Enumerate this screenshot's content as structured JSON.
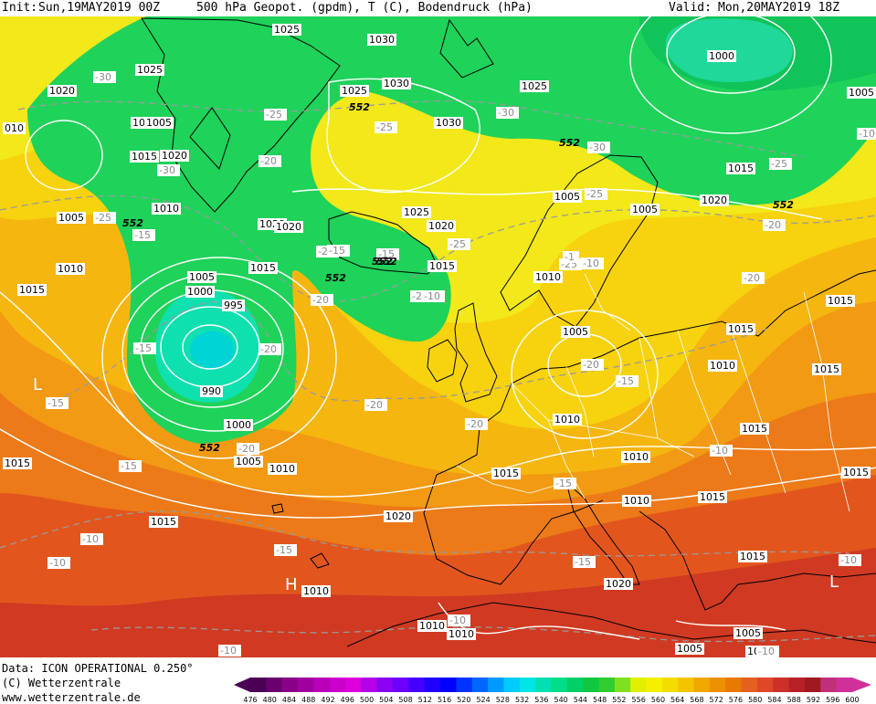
{
  "header": {
    "init_label": "Init:",
    "init_value": "Sun,19MAY2019 00Z",
    "field_desc": "500 hPa Geopot. (gpdm), T (C), Bodendruck (hPa)",
    "valid_label": "Valid:",
    "valid_value": "Mon,20MAY2019 18Z"
  },
  "footer": {
    "data_source": "Data: ICON OPERATIONAL 0.250°",
    "copyright": "(C) Wetterzentrale",
    "website": "www.wetterzentrale.de"
  },
  "colors": {
    "scale": [
      "#4b0055",
      "#6a006e",
      "#8a0089",
      "#a000a0",
      "#b800b8",
      "#cc00cc",
      "#dd00dd",
      "#b300e6",
      "#8a00f0",
      "#6b00ff",
      "#4400ff",
      "#2000ff",
      "#0000ff",
      "#0033ff",
      "#0066ff",
      "#0099ff",
      "#00ccff",
      "#00e5e5",
      "#00e0b0",
      "#00dd88",
      "#00d066",
      "#10c840",
      "#30cc30",
      "#80e020",
      "#e0f000",
      "#f4f000",
      "#f5dc00",
      "#f5c400",
      "#f0a800",
      "#ec9000",
      "#e87800",
      "#e46020",
      "#dc4828",
      "#cc3028",
      "#b82028",
      "#a01820",
      "#c0307a",
      "#d0309a"
    ]
  },
  "legend": {
    "ticks": [
      "476",
      "480",
      "484",
      "488",
      "492",
      "496",
      "500",
      "504",
      "508",
      "512",
      "516",
      "520",
      "524",
      "528",
      "532",
      "536",
      "540",
      "544",
      "548",
      "552",
      "556",
      "560",
      "564",
      "568",
      "572",
      "576",
      "580",
      "584",
      "588",
      "592",
      "596",
      "600"
    ]
  },
  "map": {
    "pressure_labels": [
      "1025",
      "1030",
      "1025",
      "1020",
      "1025",
      "1030",
      "1025",
      "1030",
      "1000",
      "1005",
      "010",
      "1015",
      "1020",
      "1010",
      "1015",
      "1005",
      "1010",
      "1015",
      "1020",
      "1020",
      "1025",
      "1020",
      "1015",
      "1010",
      "1005",
      "1000",
      "995",
      "1015",
      "1015",
      "990",
      "1000",
      "1005",
      "1010",
      "1015",
      "1005",
      "1010",
      "1015",
      "1010",
      "1015",
      "1010",
      "1015",
      "1015",
      "1015",
      "1010",
      "1015",
      "1015",
      "1020",
      "1015",
      "1020",
      "1010",
      "1010",
      "1010",
      "1005",
      "1005",
      "1010",
      "1005",
      "1005",
      "1005",
      "1015",
      "1020"
    ],
    "temperature_labels": [
      "-30",
      "-25",
      "-30",
      "-25",
      "-30",
      "-30",
      "-25",
      "-25",
      "-25",
      "-15",
      "-20",
      "-20",
      "-25",
      "-20",
      "-20",
      "-25",
      "-20",
      "-15",
      "-20",
      "-20",
      "-15",
      "-20",
      "-20",
      "-15",
      "-20",
      "-15",
      "-10",
      "-15",
      "-10",
      "-15",
      "-10",
      "-10",
      "-15",
      "-10",
      "-10",
      "-10",
      "-10",
      "-20",
      "-15",
      "-15",
      "-10",
      "-10",
      "-1"
    ],
    "contour_552_labels": [
      "552",
      "552",
      "552",
      "552",
      "552",
      "552",
      "552",
      "552"
    ],
    "pressure_centers": [
      "L",
      "H",
      "L"
    ]
  }
}
